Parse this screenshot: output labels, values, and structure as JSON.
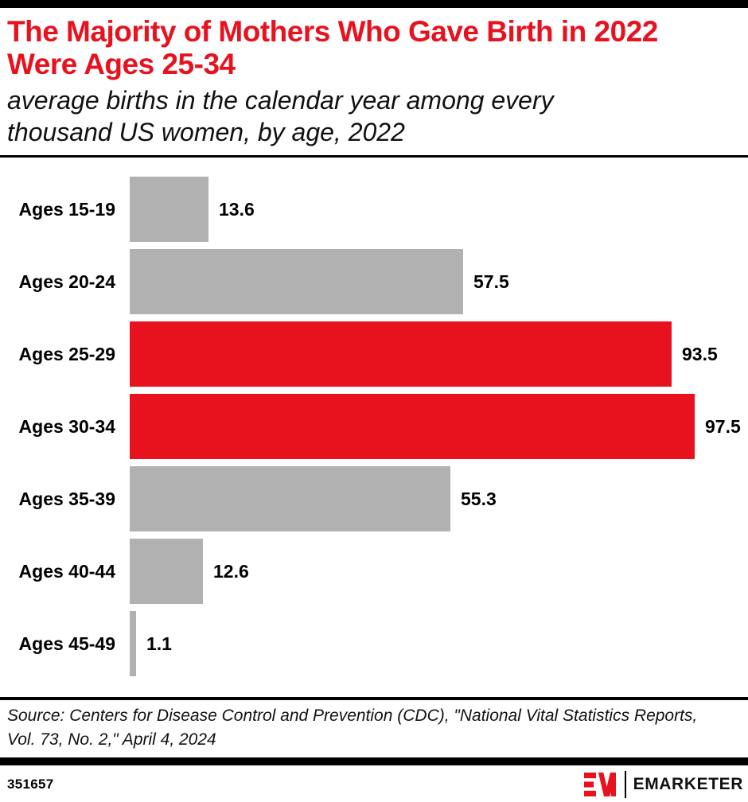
{
  "header": {
    "title": "The Majority of Mothers Who Gave Birth in 2022 Were Ages 25-34",
    "subtitle": "average births in the calendar year among every thousand US women, by age, 2022"
  },
  "chart_data": {
    "type": "bar",
    "orientation": "horizontal",
    "title": "The Majority of Mothers Who Gave Birth in 2022 Were Ages 25-34",
    "subtitle": "average births in the calendar year among every thousand US women, by age, 2022",
    "categories": [
      "Ages 15-19",
      "Ages 20-24",
      "Ages 25-29",
      "Ages 30-34",
      "Ages 35-39",
      "Ages 40-44",
      "Ages 45-49"
    ],
    "values": [
      13.6,
      57.5,
      93.5,
      97.5,
      55.3,
      12.6,
      1.1
    ],
    "value_labels": [
      "13.6",
      "57.5",
      "93.5",
      "97.5",
      "55.3",
      "12.6",
      "1.1"
    ],
    "bar_colors": [
      "#b1b1b1",
      "#b1b1b1",
      "#e8121f",
      "#e8121f",
      "#b1b1b1",
      "#b1b1b1",
      "#b1b1b1"
    ],
    "highlight_color": "#e8121f",
    "default_color": "#b1b1b1",
    "xlim": [
      0,
      106
    ],
    "grid": false,
    "legend": false,
    "data_labels": "outside-end"
  },
  "source": "Source: Centers for Disease Control and Prevention (CDC), \"National Vital Statistics Reports, Vol. 73, No. 2,\" April 4, 2024",
  "footer": {
    "chart_id": "351657",
    "brand_mark": "EM",
    "brand": "EMARKETER"
  },
  "colors": {
    "accent_red": "#e8121f",
    "bar_gray": "#b1b1b1",
    "rule_black": "#000000"
  }
}
